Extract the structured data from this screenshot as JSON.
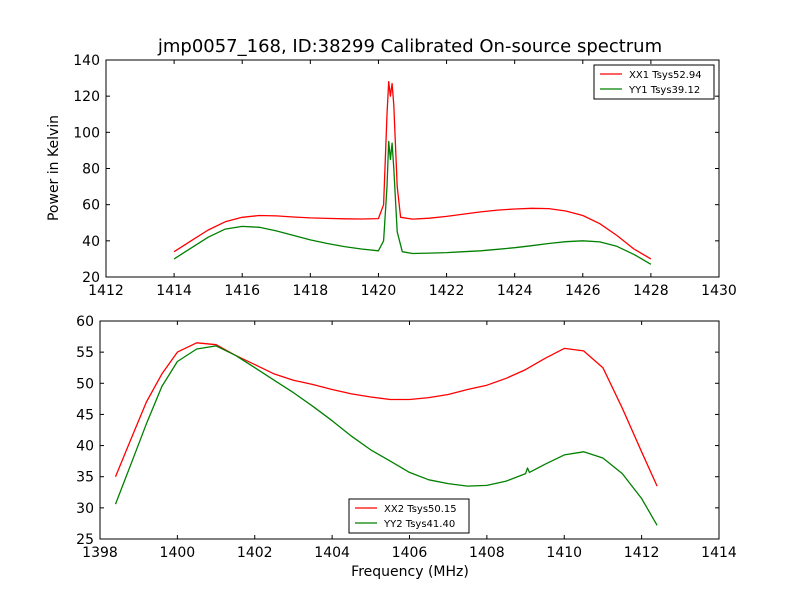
{
  "chart_data": [
    {
      "type": "line",
      "title": "jmp0057_168, ID:38299 Calibrated On-source spectrum",
      "xlabel": "",
      "ylabel": "Power in Kelvin",
      "xlim": [
        1412,
        1430
      ],
      "ylim": [
        20,
        140
      ],
      "xticks": [
        "1412",
        "1414",
        "1416",
        "1418",
        "1420",
        "1422",
        "1424",
        "1426",
        "1428",
        "1430"
      ],
      "yticks": [
        "20",
        "40",
        "60",
        "80",
        "100",
        "120",
        "140"
      ],
      "grid": false,
      "legend_position": "top-right",
      "series": [
        {
          "name": "XX1 Tsys52.94",
          "color": "#ff0000",
          "points": [
            [
              1414.0,
              34.0
            ],
            [
              1414.5,
              40.0
            ],
            [
              1415.0,
              46.0
            ],
            [
              1415.5,
              50.5
            ],
            [
              1416.0,
              53.0
            ],
            [
              1416.5,
              54.0
            ],
            [
              1417.0,
              53.8
            ],
            [
              1417.5,
              53.2
            ],
            [
              1418.0,
              52.7
            ],
            [
              1418.5,
              52.4
            ],
            [
              1419.0,
              52.2
            ],
            [
              1419.5,
              52.1
            ],
            [
              1420.0,
              52.3
            ],
            [
              1420.15,
              60.0
            ],
            [
              1420.25,
              110.0
            ],
            [
              1420.3,
              128.0
            ],
            [
              1420.35,
              120.0
            ],
            [
              1420.4,
              127.0
            ],
            [
              1420.45,
              115.0
            ],
            [
              1420.55,
              70.0
            ],
            [
              1420.65,
              53.0
            ],
            [
              1421.0,
              52.0
            ],
            [
              1421.5,
              52.5
            ],
            [
              1422.0,
              53.5
            ],
            [
              1422.5,
              54.8
            ],
            [
              1423.0,
              56.0
            ],
            [
              1423.5,
              57.0
            ],
            [
              1424.0,
              57.6
            ],
            [
              1424.5,
              58.0
            ],
            [
              1425.0,
              57.8
            ],
            [
              1425.5,
              56.5
            ],
            [
              1426.0,
              54.0
            ],
            [
              1426.5,
              49.5
            ],
            [
              1427.0,
              43.0
            ],
            [
              1427.5,
              35.5
            ],
            [
              1428.0,
              30.0
            ]
          ]
        },
        {
          "name": "YY1 Tsys39.12",
          "color": "#008000",
          "points": [
            [
              1414.0,
              30.0
            ],
            [
              1414.5,
              36.0
            ],
            [
              1415.0,
              42.0
            ],
            [
              1415.5,
              46.5
            ],
            [
              1416.0,
              48.0
            ],
            [
              1416.5,
              47.5
            ],
            [
              1417.0,
              45.5
            ],
            [
              1417.5,
              43.0
            ],
            [
              1418.0,
              40.5
            ],
            [
              1418.5,
              38.5
            ],
            [
              1419.0,
              36.8
            ],
            [
              1419.5,
              35.5
            ],
            [
              1420.0,
              34.5
            ],
            [
              1420.15,
              40.0
            ],
            [
              1420.25,
              70.0
            ],
            [
              1420.3,
              95.0
            ],
            [
              1420.35,
              85.0
            ],
            [
              1420.4,
              94.0
            ],
            [
              1420.45,
              80.0
            ],
            [
              1420.55,
              45.0
            ],
            [
              1420.7,
              34.0
            ],
            [
              1421.0,
              33.0
            ],
            [
              1421.5,
              33.2
            ],
            [
              1422.0,
              33.5
            ],
            [
              1422.5,
              34.0
            ],
            [
              1423.0,
              34.5
            ],
            [
              1423.5,
              35.3
            ],
            [
              1424.0,
              36.2
            ],
            [
              1424.5,
              37.3
            ],
            [
              1425.0,
              38.5
            ],
            [
              1425.5,
              39.5
            ],
            [
              1426.0,
              40.0
            ],
            [
              1426.5,
              39.4
            ],
            [
              1427.0,
              37.0
            ],
            [
              1427.5,
              32.5
            ],
            [
              1428.0,
              27.0
            ]
          ]
        }
      ]
    },
    {
      "type": "line",
      "title": "",
      "xlabel": "Frequency (MHz)",
      "ylabel": "",
      "xlim": [
        1398,
        1414
      ],
      "ylim": [
        25,
        60
      ],
      "xticks": [
        "1398",
        "1400",
        "1402",
        "1404",
        "1406",
        "1408",
        "1410",
        "1412",
        "1414"
      ],
      "yticks": [
        "25",
        "30",
        "35",
        "40",
        "45",
        "50",
        "55",
        "60"
      ],
      "grid": false,
      "legend_position": "bottom-center",
      "series": [
        {
          "name": "XX2 Tsys50.15",
          "color": "#ff0000",
          "points": [
            [
              1398.4,
              35.0
            ],
            [
              1398.8,
              41.0
            ],
            [
              1399.2,
              47.0
            ],
            [
              1399.6,
              51.5
            ],
            [
              1400.0,
              55.0
            ],
            [
              1400.5,
              56.5
            ],
            [
              1401.0,
              56.2
            ],
            [
              1401.5,
              54.5
            ],
            [
              1402.0,
              53.0
            ],
            [
              1402.5,
              51.5
            ],
            [
              1403.0,
              50.5
            ],
            [
              1403.5,
              49.8
            ],
            [
              1404.0,
              49.0
            ],
            [
              1404.5,
              48.3
            ],
            [
              1405.0,
              47.8
            ],
            [
              1405.5,
              47.4
            ],
            [
              1406.0,
              47.4
            ],
            [
              1406.5,
              47.7
            ],
            [
              1407.0,
              48.2
            ],
            [
              1407.5,
              49.0
            ],
            [
              1408.0,
              49.7
            ],
            [
              1408.5,
              50.8
            ],
            [
              1409.0,
              52.2
            ],
            [
              1409.5,
              54.0
            ],
            [
              1410.0,
              55.6
            ],
            [
              1410.5,
              55.2
            ],
            [
              1411.0,
              52.5
            ],
            [
              1411.5,
              46.0
            ],
            [
              1412.0,
              39.0
            ],
            [
              1412.4,
              33.5
            ]
          ]
        },
        {
          "name": "YY2 Tsys41.40",
          "color": "#008000",
          "points": [
            [
              1398.4,
              30.6
            ],
            [
              1398.8,
              37.0
            ],
            [
              1399.2,
              43.5
            ],
            [
              1399.6,
              49.5
            ],
            [
              1400.0,
              53.5
            ],
            [
              1400.5,
              55.5
            ],
            [
              1401.0,
              56.0
            ],
            [
              1401.5,
              54.5
            ],
            [
              1402.0,
              52.5
            ],
            [
              1402.5,
              50.5
            ],
            [
              1403.0,
              48.5
            ],
            [
              1403.5,
              46.3
            ],
            [
              1404.0,
              44.0
            ],
            [
              1404.5,
              41.5
            ],
            [
              1405.0,
              39.3
            ],
            [
              1405.5,
              37.5
            ],
            [
              1406.0,
              35.7
            ],
            [
              1406.5,
              34.5
            ],
            [
              1407.0,
              33.9
            ],
            [
              1407.5,
              33.5
            ],
            [
              1408.0,
              33.6
            ],
            [
              1408.5,
              34.3
            ],
            [
              1409.0,
              35.5
            ],
            [
              1409.05,
              36.4
            ],
            [
              1409.1,
              35.7
            ],
            [
              1409.5,
              37.0
            ],
            [
              1410.0,
              38.5
            ],
            [
              1410.5,
              39.0
            ],
            [
              1411.0,
              38.0
            ],
            [
              1411.5,
              35.5
            ],
            [
              1412.0,
              31.5
            ],
            [
              1412.4,
              27.2
            ]
          ]
        }
      ]
    }
  ]
}
